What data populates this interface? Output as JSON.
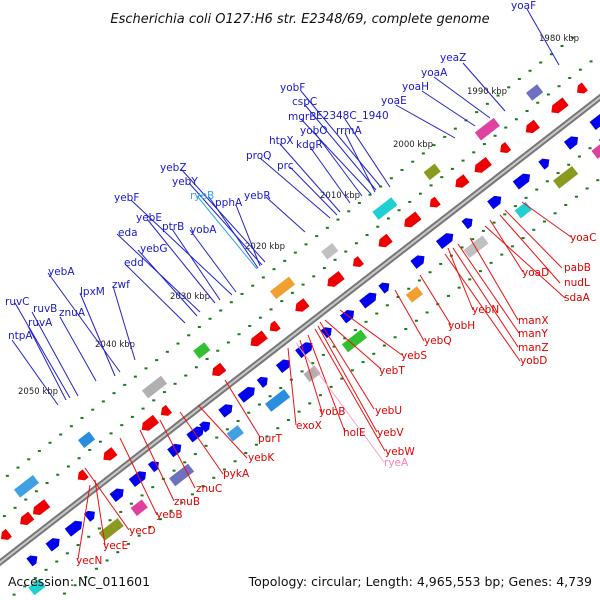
{
  "header": {
    "title": "Escherichia coli O127:H6 str. E2348/69, complete genome"
  },
  "footer": {
    "accession": "Accession: NC_011601",
    "summary": "Topology: circular; Length: 4,965,553 bp; Genes: 4,739"
  },
  "colors": {
    "forward_gene": "#0000ee",
    "reverse_gene": "#ee0000",
    "backbone": "#888888",
    "tick": "#1a7a1a",
    "ncrna_forward": "#2aa6e8",
    "ncrna_reverse": "#ff80b0"
  },
  "ticks": [
    {
      "text": "1980 kbp"
    },
    {
      "text": "1990 kbp"
    },
    {
      "text": "2000 kbp"
    },
    {
      "text": "2010 kbp"
    },
    {
      "text": "2020 kbp"
    },
    {
      "text": "2030 kbp"
    },
    {
      "text": "2040 kbp"
    },
    {
      "text": "2050 kbp"
    }
  ],
  "forward_genes": [
    {
      "name": "yoaF"
    },
    {
      "name": "yeaZ"
    },
    {
      "name": "yoaA"
    },
    {
      "name": "yoaH"
    },
    {
      "name": "yoaE"
    },
    {
      "name": "yobF"
    },
    {
      "name": "cspC"
    },
    {
      "name": "mgrB"
    },
    {
      "name": "E2348C_1940"
    },
    {
      "name": "yobO"
    },
    {
      "name": "rrmA"
    },
    {
      "name": "kdgR"
    },
    {
      "name": "htpX"
    },
    {
      "name": "proQ"
    },
    {
      "name": "prc"
    },
    {
      "name": "yebZ"
    },
    {
      "name": "yebY"
    },
    {
      "name": "ryeB"
    },
    {
      "name": "pphA"
    },
    {
      "name": "yebR"
    },
    {
      "name": "yebF"
    },
    {
      "name": "ptrB"
    },
    {
      "name": "yebE"
    },
    {
      "name": "eda"
    },
    {
      "name": "yobA"
    },
    {
      "name": "yebG"
    },
    {
      "name": "edd"
    },
    {
      "name": "yebA"
    },
    {
      "name": "lpxM"
    },
    {
      "name": "zwf"
    },
    {
      "name": "ruvC"
    },
    {
      "name": "ruvB"
    },
    {
      "name": "znuA"
    },
    {
      "name": "ruvA"
    },
    {
      "name": "ntpA"
    }
  ],
  "reverse_genes": [
    {
      "name": "yoaC"
    },
    {
      "name": "pabB"
    },
    {
      "name": "yoaD"
    },
    {
      "name": "nudL"
    },
    {
      "name": "sdaA"
    },
    {
      "name": "yebN"
    },
    {
      "name": "manX"
    },
    {
      "name": "manY"
    },
    {
      "name": "manZ"
    },
    {
      "name": "yobD"
    },
    {
      "name": "yobH"
    },
    {
      "name": "yebQ"
    },
    {
      "name": "yebS"
    },
    {
      "name": "yebT"
    },
    {
      "name": "yebU"
    },
    {
      "name": "yobB"
    },
    {
      "name": "exoX"
    },
    {
      "name": "holE"
    },
    {
      "name": "yebV"
    },
    {
      "name": "yebW"
    },
    {
      "name": "ryeA"
    },
    {
      "name": "purT"
    },
    {
      "name": "yebK"
    },
    {
      "name": "pykA"
    },
    {
      "name": "znuC"
    },
    {
      "name": "znuB"
    },
    {
      "name": "yebB"
    },
    {
      "name": "yecD"
    },
    {
      "name": "yecE"
    },
    {
      "name": "yecN"
    }
  ]
}
